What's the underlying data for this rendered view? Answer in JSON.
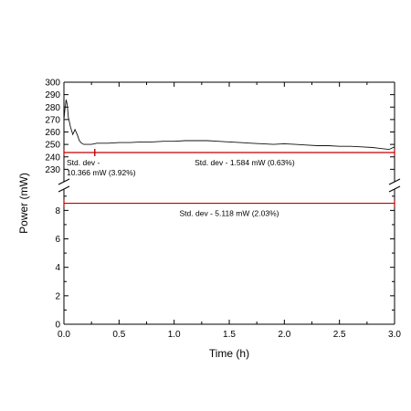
{
  "chart_data": {
    "type": "line",
    "xlabel": "Time (h)",
    "ylabel": "Power (mW)",
    "xlim": [
      0,
      3.0
    ],
    "x_ticks": [
      "0.0",
      "0.5",
      "1.0",
      "1.5",
      "2.0",
      "2.5",
      "3.0"
    ],
    "y_upper": {
      "ylim": [
        220,
        300
      ],
      "ticks": [
        "230",
        "240",
        "250",
        "260",
        "270",
        "280",
        "290",
        "300"
      ]
    },
    "y_lower": {
      "ylim": [
        0,
        9.5
      ],
      "ticks": [
        "0",
        "2",
        "4",
        "6",
        "8"
      ]
    },
    "axis_break": true,
    "grid": false,
    "series": [
      {
        "color": "#111111",
        "x": [
          0.0,
          0.01,
          0.02,
          0.03,
          0.04,
          0.06,
          0.08,
          0.1,
          0.12,
          0.14,
          0.16,
          0.18,
          0.2,
          0.25,
          0.3,
          0.4,
          0.5,
          0.6,
          0.7,
          0.8,
          0.9,
          1.0,
          1.1,
          1.2,
          1.3,
          1.4,
          1.5,
          1.6,
          1.7,
          1.8,
          1.9,
          2.0,
          2.1,
          2.2,
          2.3,
          2.4,
          2.5,
          2.6,
          2.7,
          2.8,
          2.85,
          2.9,
          2.95,
          3.0
        ],
        "y": [
          270,
          279,
          286,
          282,
          272,
          264,
          258,
          262,
          258,
          253,
          251,
          250,
          250,
          250,
          251,
          251,
          251.5,
          251.5,
          252,
          252,
          252.5,
          252.5,
          253,
          253,
          253,
          252.5,
          252,
          251.5,
          251,
          250.5,
          250,
          250.5,
          250,
          249.5,
          249,
          249,
          248.5,
          248.5,
          248,
          247.5,
          247,
          246.5,
          246,
          248
        ]
      }
    ],
    "annotations": [
      {
        "text_lines": [
          "Std. dev -",
          "10.366 mW (3.92%)"
        ],
        "x_range": [
          0.0,
          0.28
        ],
        "y": 243.5,
        "panel": "upper"
      },
      {
        "text_lines": [
          "Std. dev - 1.584 mW (0.63%)"
        ],
        "x_range": [
          0.28,
          3.0
        ],
        "y": 243.5,
        "panel": "upper"
      },
      {
        "text_lines": [
          "Std. dev - 5.118 mW (2.03%)"
        ],
        "x_range": [
          0.0,
          3.0
        ],
        "y": 8.5,
        "panel": "lower"
      }
    ],
    "annotation_color": "#c00000"
  }
}
